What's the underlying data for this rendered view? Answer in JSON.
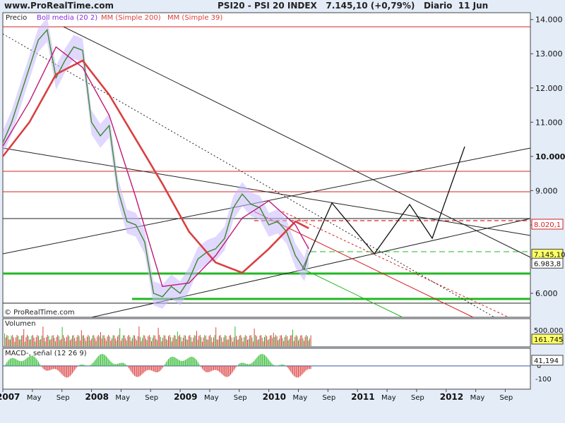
{
  "header": {
    "site": "www.ProRealTime.com",
    "instrument": "PSI20 - PSI 20 INDEX",
    "last": "7.145,10 (+0,79%)",
    "period": "Diario",
    "date": "11 Jun"
  },
  "legend": {
    "precio": "Precio",
    "boll": "Boll media (20 2)",
    "mm200": "MM (Simple 200)",
    "mm39": "MM (Simple 39)"
  },
  "copyright": "© ProRealTime.com",
  "colors": {
    "background": "#e3ecf7",
    "panel": "#ffffff",
    "price": "#3a8a2a",
    "boll_band": "#c7b8ff",
    "boll_mid": "#8a2be2",
    "mm200": "#d94040",
    "mm39": "#c0187a",
    "support": "#22b822",
    "resistance": "#d62020",
    "macd_pos": "#33bb33",
    "macd_neg": "#dd4444"
  },
  "chart_data": [
    {
      "type": "line",
      "title": "PSI20 - PSI 20 INDEX",
      "ylim": [
        5300,
        14200
      ],
      "y_ticks": [
        "14.000",
        "13.000",
        "12.000",
        "11.000",
        "10.000",
        "9.000",
        "8.000",
        "7.000",
        "6.000"
      ],
      "x_labels": [
        "2007",
        "May",
        "Sep",
        "2008",
        "May",
        "Sep",
        "2009",
        "May",
        "Sep",
        "2010",
        "May",
        "Sep",
        "2011",
        "May",
        "Sep",
        "2012",
        "May",
        "Sep"
      ],
      "series": [
        {
          "name": "Precio",
          "x": [
            2007.0,
            2007.1,
            2007.2,
            2007.3,
            2007.4,
            2007.5,
            2007.6,
            2007.7,
            2007.8,
            2007.9,
            2008.0,
            2008.1,
            2008.2,
            2008.3,
            2008.4,
            2008.5,
            2008.6,
            2008.7,
            2008.8,
            2008.9,
            2009.0,
            2009.1,
            2009.2,
            2009.3,
            2009.4,
            2009.5,
            2009.6,
            2009.7,
            2009.8,
            2009.9,
            2010.0,
            2010.1,
            2010.2,
            2010.3,
            2010.4,
            2010.45
          ],
          "values": [
            10400,
            11000,
            11800,
            12600,
            13400,
            13700,
            12300,
            12800,
            13200,
            13100,
            11000,
            10600,
            10900,
            9000,
            8100,
            8000,
            7500,
            6000,
            5900,
            6200,
            6000,
            6400,
            7000,
            7200,
            7300,
            7600,
            8500,
            8900,
            8600,
            8500,
            8000,
            8100,
            7800,
            7100,
            6700,
            7145
          ]
        },
        {
          "name": "MM (Simple 200)",
          "x": [
            2007.0,
            2007.3,
            2007.6,
            2007.9,
            2008.2,
            2008.5,
            2008.8,
            2009.1,
            2009.4,
            2009.7,
            2010.0,
            2010.3,
            2010.45
          ],
          "values": [
            10000,
            11000,
            12400,
            12800,
            11800,
            10500,
            9200,
            7800,
            6900,
            6600,
            7300,
            8100,
            7900
          ]
        },
        {
          "name": "MM (Simple 39)",
          "x": [
            2007.0,
            2007.3,
            2007.6,
            2007.9,
            2008.2,
            2008.5,
            2008.8,
            2009.1,
            2009.4,
            2009.7,
            2010.0,
            2010.3,
            2010.45
          ],
          "values": [
            10300,
            11600,
            13200,
            12600,
            11200,
            8800,
            6200,
            6300,
            7100,
            8200,
            8700,
            8000,
            7300
          ]
        }
      ],
      "annotations": [
        "8.020,1",
        "7.145,10",
        "6.983,8"
      ]
    },
    {
      "type": "bar",
      "title": "Volumen",
      "ylim": [
        0,
        800000
      ],
      "y_ticks": [
        "500.000"
      ],
      "last_value": "161.745"
    },
    {
      "type": "bar",
      "title": "MACD-, señal (12 26 9)",
      "ylim": [
        -160,
        120
      ],
      "y_ticks": [
        "0",
        "-100"
      ],
      "last_value": "41,194"
    }
  ]
}
